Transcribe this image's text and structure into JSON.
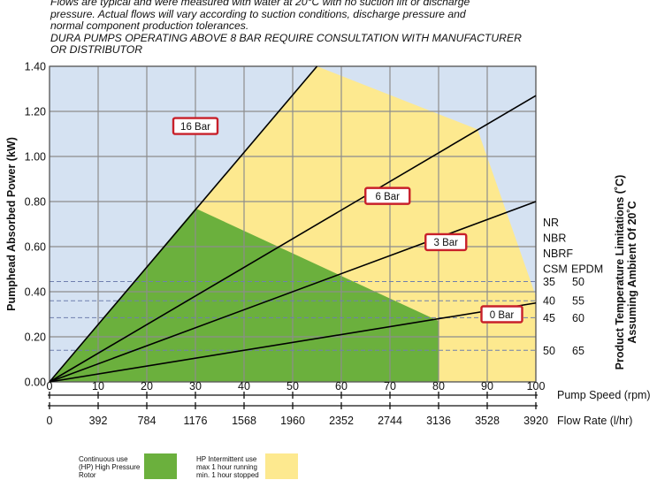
{
  "notes": {
    "line1": "Flows are typical and were measured with water at 20°C with no suction lift or discharge",
    "line2": "pressure. Actual flows will vary according to suction conditions, discharge pressure and",
    "line3": "normal component production tolerances.",
    "line4": "DURA PUMPS OPERATING ABOVE 8 BAR REQUIRE CONSULTATION WITH MANUFACTURER",
    "line5": "OR DISTRIBUTOR"
  },
  "colors": {
    "background": "#d5e2f2",
    "hp_intermittent": "#fde98f",
    "continuous": "#6bb03d",
    "grid": "#8d8d8d",
    "label_border": "#c8202a"
  },
  "chart_data": {
    "type": "line",
    "ylabel": "Pumphead Absorbed Power (kW)",
    "ylim": [
      0,
      1.4
    ],
    "yticks": [
      "0.00",
      "0.20",
      "0.40",
      "0.60",
      "0.80",
      "1.00",
      "1.20",
      "1.40"
    ],
    "xlabel": "Pump Speed (rpm)",
    "xlim": [
      0,
      100
    ],
    "xticks": [
      "0",
      "10",
      "20",
      "30",
      "40",
      "50",
      "60",
      "70",
      "80",
      "90",
      "100"
    ],
    "x2label": "Flow Rate (l/hr)",
    "x2ticks": [
      "0",
      "392",
      "784",
      "1176",
      "1568",
      "1960",
      "2352",
      "2744",
      "3136",
      "3528",
      "3920"
    ],
    "grid": true,
    "series": [
      {
        "name": "16 Bar",
        "x": [
          0,
          55
        ],
        "y": [
          0,
          1.4
        ]
      },
      {
        "name": "6 Bar",
        "x": [
          0,
          100
        ],
        "y": [
          0,
          1.27
        ]
      },
      {
        "name": "3 Bar",
        "x": [
          0,
          100
        ],
        "y": [
          0,
          0.8
        ]
      },
      {
        "name": "0 Bar",
        "x": [
          0,
          100
        ],
        "y": [
          0,
          0.35
        ]
      }
    ],
    "regions": [
      {
        "name": "HP Intermittent",
        "x": [
          0,
          55,
          88,
          100,
          100,
          0
        ],
        "y": [
          0,
          1.4,
          1.12,
          0.38,
          0,
          0
        ]
      },
      {
        "name": "Continuous",
        "x": [
          0,
          30,
          80,
          80,
          0
        ],
        "y": [
          0,
          0.77,
          0.27,
          0,
          0
        ]
      }
    ],
    "temperature_limits": {
      "title_line1": "Product Temperature Limitations (˚C)",
      "title_line2": "Assuming Ambient Of 20˚C",
      "materials": [
        "NR",
        "NBR",
        "NBRF"
      ],
      "columns": [
        "CSM",
        "EPDM"
      ],
      "rows": [
        {
          "col1": "35",
          "col2": "50",
          "y": 0.445
        },
        {
          "col1": "40",
          "col2": "55",
          "y": 0.36
        },
        {
          "col1": "45",
          "col2": "60",
          "y": 0.285
        },
        {
          "col1": "50",
          "col2": "65",
          "y": 0.14
        }
      ]
    },
    "legend": [
      {
        "line1": "Continuous use",
        "line2": "(HP) High Pressure",
        "line3": "Rotor",
        "color": "#6bb03d"
      },
      {
        "line1": "HP Intermittent use",
        "line2": "max 1 hour running",
        "line3": "min. 1 hour stopped",
        "color": "#fde98f"
      }
    ]
  }
}
